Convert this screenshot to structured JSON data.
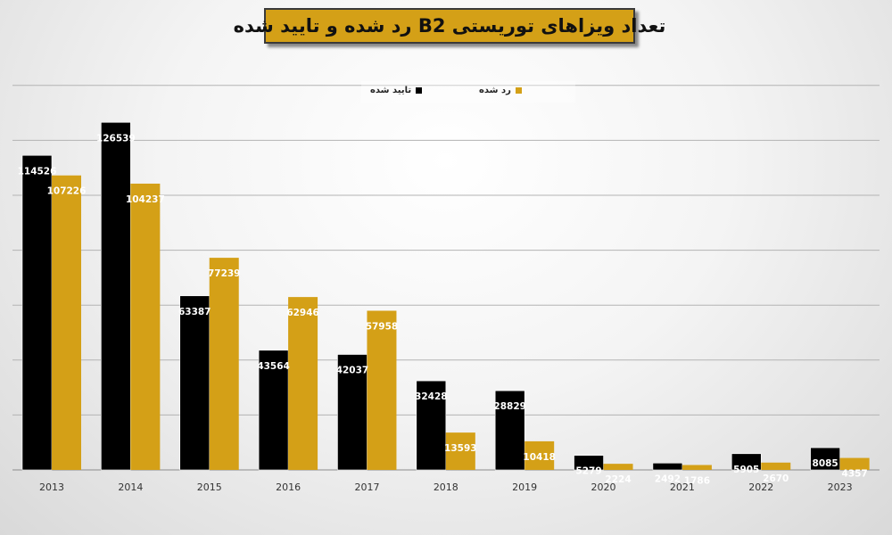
{
  "chart_data": {
    "type": "bar",
    "title": "تعداد ویزاهای توریستی B2 رد شده و تایید شده",
    "xlabel": "",
    "ylabel": "",
    "ylim": [
      0,
      150000
    ],
    "grid": true,
    "legend_position": "top-center",
    "categories": [
      "2013",
      "2014",
      "2015",
      "2016",
      "2017",
      "2018",
      "2019",
      "2020",
      "2021",
      "2022",
      "2023"
    ],
    "series": [
      {
        "name": "تایید شده",
        "color": "#000000",
        "values": [
          114526,
          126539,
          63387,
          43564,
          42037,
          32428,
          28829,
          5279,
          2492,
          5905,
          8085
        ]
      },
      {
        "name": "رد شده",
        "color": "#d4a017",
        "values": [
          107226,
          104237,
          77239,
          62946,
          57958,
          13593,
          10418,
          2224,
          1786,
          2670,
          4357
        ]
      }
    ]
  }
}
